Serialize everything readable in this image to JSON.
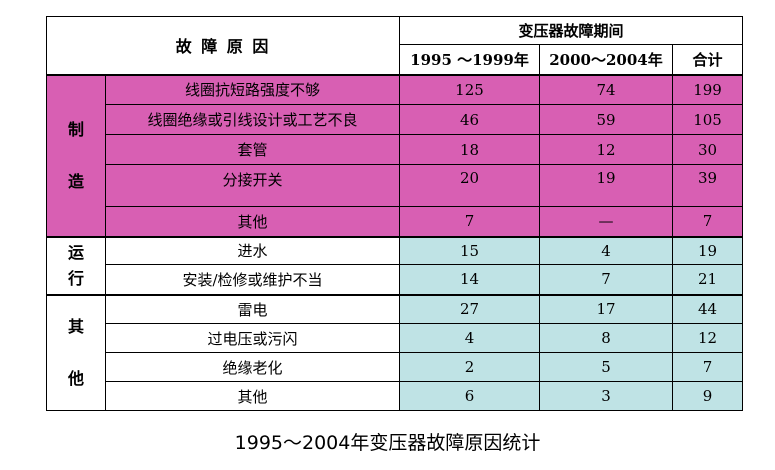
{
  "header": {
    "cause_title": "故 障 原 因",
    "period_title": "变压器故障期间",
    "columns": [
      "1995 ～1999年",
      "2000～2004年",
      "合计"
    ]
  },
  "groups": [
    {
      "label_lines": [
        "制",
        "造"
      ],
      "rows": [
        {
          "cause": "线圈抗短路强度不够",
          "p1": "125",
          "p2": "74",
          "total": "199"
        },
        {
          "cause": "线圈绝缘或引线设计或工艺不良",
          "p1": "46",
          "p2": "59",
          "total": "105"
        },
        {
          "cause": "套管",
          "p1": "18",
          "p2": "12",
          "total": "30"
        },
        {
          "cause": "分接开关",
          "p1": "20",
          "p2": "19",
          "total": "39"
        },
        {
          "cause": "其他",
          "p1": "7",
          "p2": "—",
          "total": "7"
        }
      ]
    },
    {
      "label_lines": [
        "运",
        "行"
      ],
      "rows": [
        {
          "cause": "进水",
          "p1": "15",
          "p2": "4",
          "total": "19"
        },
        {
          "cause": "安装/检修或维护不当",
          "p1": "14",
          "p2": "7",
          "total": "21"
        }
      ]
    },
    {
      "label_lines": [
        "其",
        "他"
      ],
      "rows": [
        {
          "cause": "雷电",
          "p1": "27",
          "p2": "17",
          "total": "44"
        },
        {
          "cause": "过电压或污闪",
          "p1": "4",
          "p2": "8",
          "total": "12"
        },
        {
          "cause": "绝缘老化",
          "p1": "2",
          "p2": "5",
          "total": "7"
        },
        {
          "cause": "其他",
          "p1": "6",
          "p2": "3",
          "total": "9"
        }
      ]
    }
  ],
  "caption": "1995～2004年变压器故障原因统计",
  "colors": {
    "manufacturing": "#d85fb3",
    "data_cyan": "#bfe3e5"
  }
}
